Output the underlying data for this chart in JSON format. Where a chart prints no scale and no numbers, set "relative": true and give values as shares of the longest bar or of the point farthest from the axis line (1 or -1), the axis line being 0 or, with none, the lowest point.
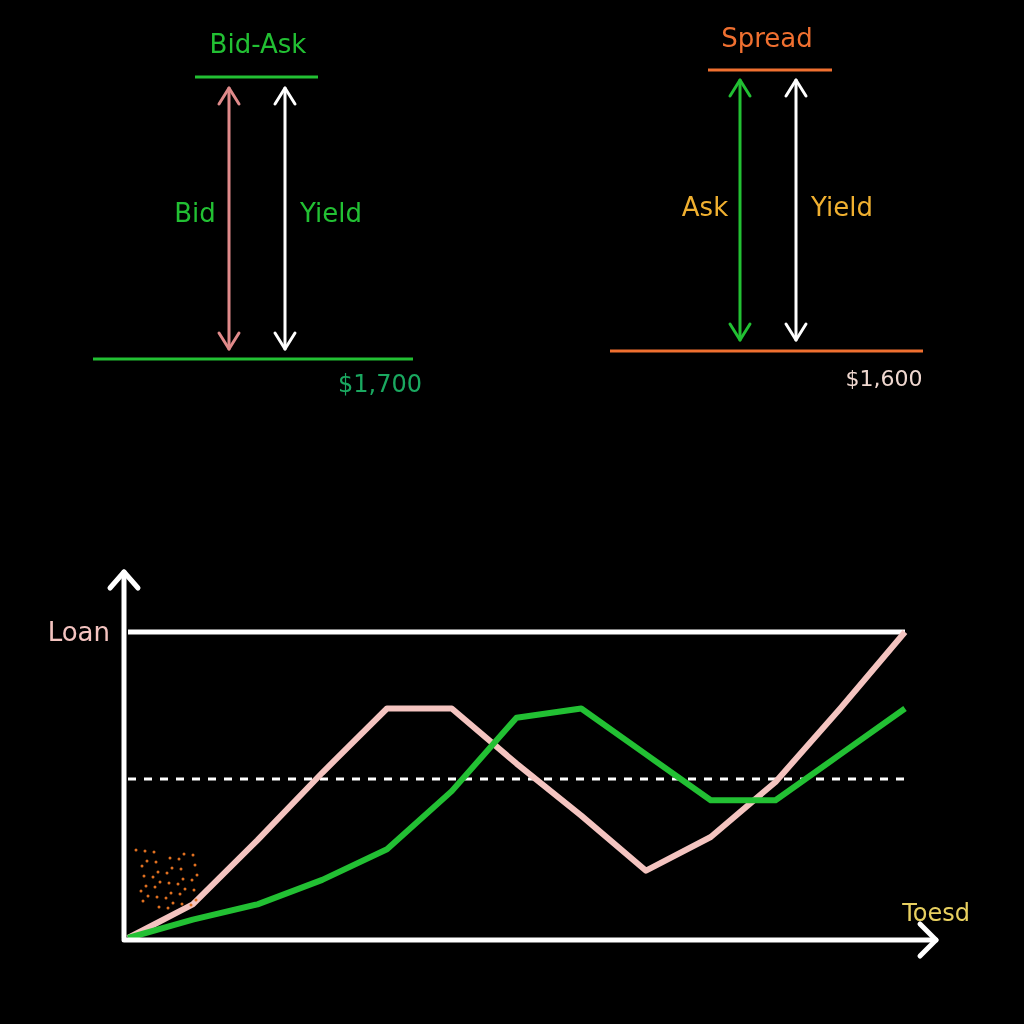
{
  "chart_data": {
    "type": "line",
    "relative": true,
    "xlabel": "Toesd",
    "categories": [
      null,
      null,
      null,
      null,
      null,
      null,
      null,
      null,
      null,
      null,
      null,
      null,
      null
    ],
    "series": [
      {
        "color": "#f4c4c0",
        "values": [
          0,
          0.11,
          0.32,
          0.54,
          0.75,
          0.75,
          0.57,
          0.4,
          0.22,
          0.33,
          0.51,
          0.75,
          1.0
        ]
      },
      {
        "color": "#22c033",
        "values": [
          0,
          0.06,
          0.11,
          0.19,
          0.29,
          0.48,
          0.72,
          0.75,
          0.6,
          0.45,
          0.45,
          0.6,
          0.75
        ]
      }
    ],
    "ref_lines": [
      {
        "axis": "y",
        "value": 1.0,
        "label": "Loan",
        "color": "#ffffff",
        "line_style": "solid"
      },
      {
        "axis": "y",
        "value": 0.52,
        "color": "#ffffff",
        "line_style": "dashed"
      }
    ],
    "annotations": [
      "Bid-Ask",
      "Bid",
      "Yield",
      "$1,700",
      "Spread",
      "Ask",
      "Yield",
      "$1,600"
    ],
    "grid": false,
    "marker": "none",
    "line_style": "solid"
  }
}
